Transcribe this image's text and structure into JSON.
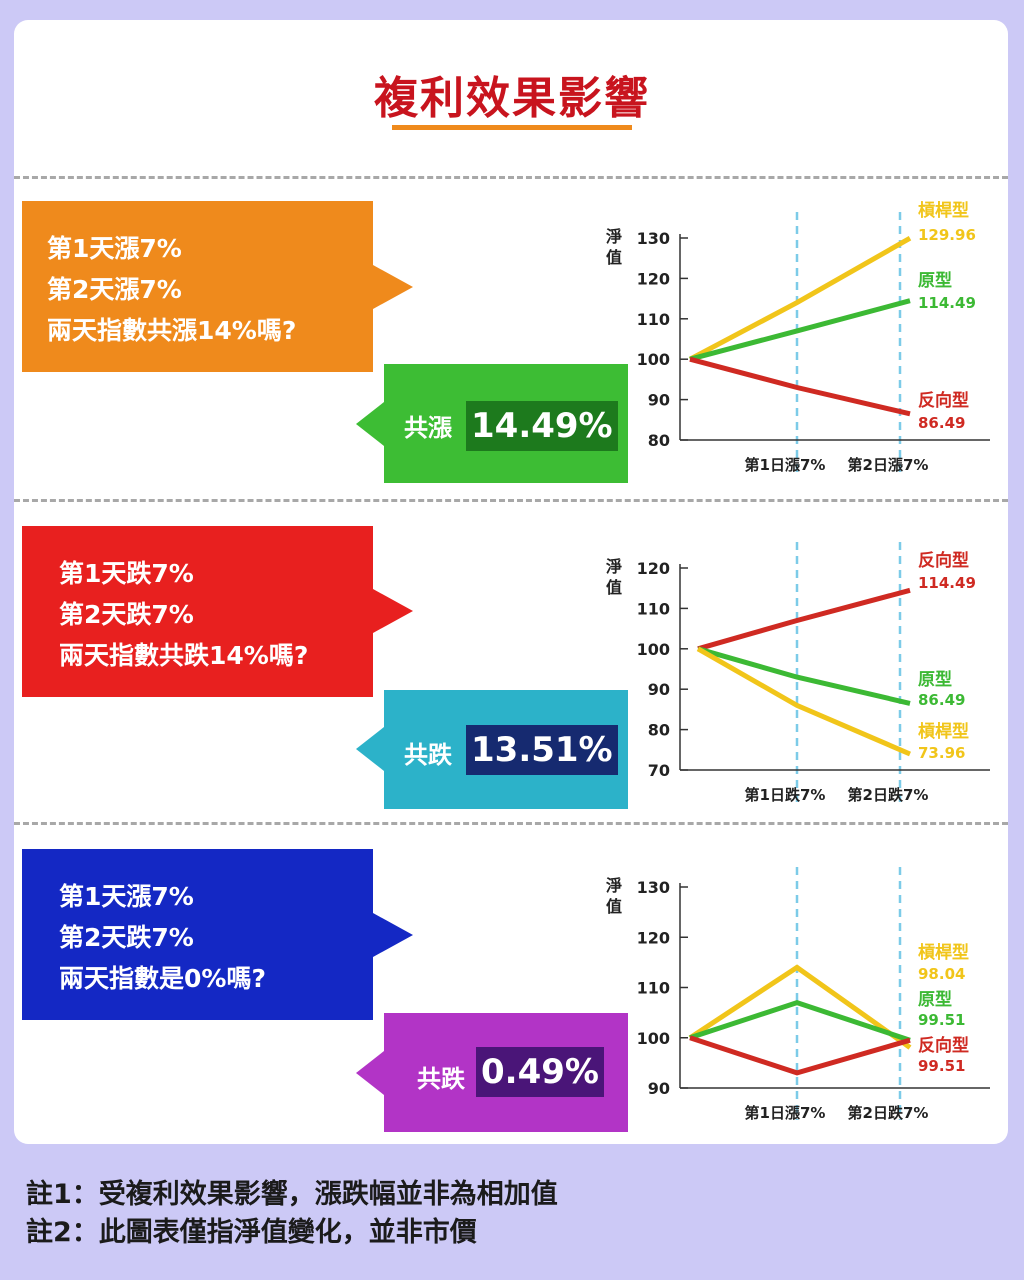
{
  "title": "複利效果影響",
  "colors": {
    "leveraged": "#f1c51a",
    "original": "#3cb934",
    "inverse": "#cf2a22",
    "guide": "#7ccbe8"
  },
  "panels": [
    {
      "question": [
        "第1天漲7%",
        "第2天漲7%",
        "兩天指數共漲14%嗎?"
      ],
      "question_color": "#ef8a1c",
      "answer_label": "共漲",
      "answer_pct": "14.49%",
      "answer_color": "#3dbd34",
      "answer_pct_bg": "#1d7a1d"
    },
    {
      "question": [
        "第1天跌7%",
        "第2天跌7%",
        "兩天指數共跌14%嗎?"
      ],
      "question_color": "#e8201f",
      "answer_label": "共跌",
      "answer_pct": "13.51%",
      "answer_color": "#2cb2c9",
      "answer_pct_bg": "#162a70"
    },
    {
      "question": [
        "第1天漲7%",
        "第2天跌7%",
        "兩天指數是0%嗎?"
      ],
      "question_color": "#1428c4",
      "answer_label": "共跌",
      "answer_pct": "0.49%",
      "answer_color": "#b234c6",
      "answer_pct_bg": "#4a1578"
    }
  ],
  "chart_data": [
    {
      "type": "line",
      "ylabel": "淨值",
      "ylim": [
        80,
        130
      ],
      "yticks": [
        80,
        90,
        100,
        110,
        120,
        130
      ],
      "categories": [
        "",
        "第1日漲7%",
        "第2日漲7%"
      ],
      "series": [
        {
          "name": "槓桿型",
          "key": "leveraged",
          "values": [
            100,
            114,
            129.96
          ],
          "end_label": "129.96"
        },
        {
          "name": "原型",
          "key": "original",
          "values": [
            100,
            107,
            114.49
          ],
          "end_label": "114.49"
        },
        {
          "name": "反向型",
          "key": "inverse",
          "values": [
            100,
            93,
            86.49
          ],
          "end_label": "86.49"
        }
      ]
    },
    {
      "type": "line",
      "ylabel": "淨值",
      "ylim": [
        70,
        120
      ],
      "yticks": [
        70,
        80,
        90,
        100,
        110,
        120
      ],
      "categories": [
        "",
        "第1日跌7%",
        "第2日跌7%"
      ],
      "series": [
        {
          "name": "反向型",
          "key": "inverse",
          "values": [
            100,
            107,
            114.49
          ],
          "end_label": "114.49"
        },
        {
          "name": "原型",
          "key": "original",
          "values": [
            100,
            93,
            86.49
          ],
          "end_label": "86.49"
        },
        {
          "name": "槓桿型",
          "key": "leveraged",
          "values": [
            100,
            86,
            73.96
          ],
          "end_label": "73.96"
        }
      ]
    },
    {
      "type": "line",
      "ylabel": "淨值",
      "ylim": [
        90,
        130
      ],
      "yticks": [
        90,
        100,
        110,
        120,
        130
      ],
      "categories": [
        "",
        "第1日漲7%",
        "第2日跌7%"
      ],
      "series": [
        {
          "name": "槓桿型",
          "key": "leveraged",
          "values": [
            100,
            114,
            98.04
          ],
          "end_label": "98.04"
        },
        {
          "name": "原型",
          "key": "original",
          "values": [
            100,
            107,
            99.51
          ],
          "end_label": "99.51"
        },
        {
          "name": "反向型",
          "key": "inverse",
          "values": [
            100,
            93,
            99.51
          ],
          "end_label": "99.51"
        }
      ]
    }
  ],
  "notes": [
    "註1：受複利效果影響，漲跌幅並非為相加值",
    "註2：此圖表僅指淨值變化，並非市價"
  ]
}
